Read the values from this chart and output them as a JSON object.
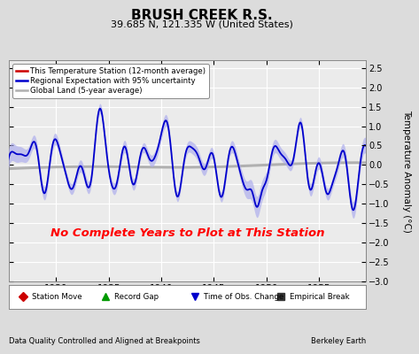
{
  "title": "BRUSH CREEK R.S.",
  "subtitle": "39.685 N, 121.335 W (United States)",
  "ylabel": "Temperature Anomaly (°C)",
  "xlabel_years": [
    1930,
    1935,
    1940,
    1945,
    1950,
    1955
  ],
  "xlim": [
    1925.5,
    1959.5
  ],
  "ylim": [
    -3.0,
    2.7
  ],
  "yticks": [
    -3,
    -2.5,
    -2,
    -1.5,
    -1,
    -0.5,
    0,
    0.5,
    1,
    1.5,
    2,
    2.5
  ],
  "footer_left": "Data Quality Controlled and Aligned at Breakpoints",
  "footer_right": "Berkeley Earth",
  "no_data_text": "No Complete Years to Plot at This Station",
  "background_color": "#dcdcdc",
  "plot_background_color": "#ebebeb",
  "grid_color": "#ffffff",
  "regional_line_color": "#0000cc",
  "regional_fill_color": "#aaaaee",
  "global_land_color": "#b0b0b0",
  "station_color": "#cc0000",
  "legend1_entries": [
    {
      "label": "This Temperature Station (12-month average)",
      "color": "#cc0000",
      "lw": 2
    },
    {
      "label": "Regional Expectation with 95% uncertainty",
      "color": "#0000cc",
      "lw": 2
    },
    {
      "label": "Global Land (5-year average)",
      "color": "#b0b0b0",
      "lw": 2
    }
  ],
  "legend2_entries": [
    {
      "label": "Station Move",
      "marker": "D",
      "color": "#cc0000"
    },
    {
      "label": "Record Gap",
      "marker": "^",
      "color": "#009900"
    },
    {
      "label": "Time of Obs. Change",
      "marker": "v",
      "color": "#0000cc"
    },
    {
      "label": "Empirical Break",
      "marker": "s",
      "color": "#333333"
    }
  ]
}
